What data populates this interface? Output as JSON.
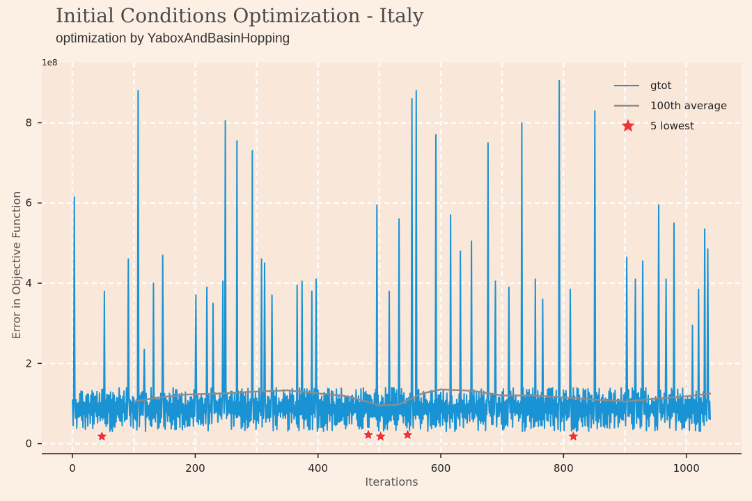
{
  "header": {
    "title": "Initial Conditions Optimization - Italy",
    "subtitle": "optimization by YaboxAndBasinHopping"
  },
  "chart_data": {
    "type": "line",
    "title": "Initial Conditions Optimization - Italy",
    "subtitle": "optimization by YaboxAndBasinHopping",
    "xlabel": "Iterations",
    "ylabel": "Error in Objective Function",
    "y_offset_label": "1e8",
    "xlim": [
      -50,
      1090
    ],
    "ylim": [
      -0.25,
      9.5
    ],
    "xticks": [
      0,
      200,
      400,
      600,
      800,
      1000
    ],
    "yticks": [
      0,
      2,
      4,
      6,
      8
    ],
    "grid": true,
    "legend_position": "top-right",
    "colors": {
      "gtot": "#1a93d4",
      "average": "#8c8c8c",
      "lowest": "#ee3333",
      "background": "#f9e7da",
      "page": "#fcf0e4"
    },
    "series": [
      {
        "name": "gtot",
        "kind": "line",
        "n_points": 1040,
        "baseline_range": [
          0.3,
          1.4
        ],
        "spikes": [
          {
            "x": 3,
            "y": 6.15
          },
          {
            "x": 52,
            "y": 3.8
          },
          {
            "x": 91,
            "y": 4.6
          },
          {
            "x": 107,
            "y": 8.8
          },
          {
            "x": 117,
            "y": 2.35
          },
          {
            "x": 132,
            "y": 4.0
          },
          {
            "x": 147,
            "y": 4.7
          },
          {
            "x": 201,
            "y": 3.7
          },
          {
            "x": 219,
            "y": 3.9
          },
          {
            "x": 229,
            "y": 3.5
          },
          {
            "x": 245,
            "y": 4.05
          },
          {
            "x": 249,
            "y": 8.05
          },
          {
            "x": 268,
            "y": 7.55
          },
          {
            "x": 293,
            "y": 7.3
          },
          {
            "x": 308,
            "y": 4.6
          },
          {
            "x": 313,
            "y": 4.5
          },
          {
            "x": 325,
            "y": 3.7
          },
          {
            "x": 366,
            "y": 3.95
          },
          {
            "x": 374,
            "y": 4.05
          },
          {
            "x": 390,
            "y": 3.8
          },
          {
            "x": 397,
            "y": 4.1
          },
          {
            "x": 496,
            "y": 5.95
          },
          {
            "x": 516,
            "y": 3.8
          },
          {
            "x": 532,
            "y": 5.6
          },
          {
            "x": 553,
            "y": 8.6
          },
          {
            "x": 560,
            "y": 8.8
          },
          {
            "x": 592,
            "y": 7.7
          },
          {
            "x": 616,
            "y": 5.7
          },
          {
            "x": 632,
            "y": 4.8
          },
          {
            "x": 650,
            "y": 5.05
          },
          {
            "x": 677,
            "y": 7.5
          },
          {
            "x": 689,
            "y": 4.05
          },
          {
            "x": 711,
            "y": 3.9
          },
          {
            "x": 732,
            "y": 8.0
          },
          {
            "x": 754,
            "y": 4.1
          },
          {
            "x": 766,
            "y": 3.6
          },
          {
            "x": 793,
            "y": 9.05
          },
          {
            "x": 811,
            "y": 3.85
          },
          {
            "x": 851,
            "y": 8.3
          },
          {
            "x": 903,
            "y": 4.65
          },
          {
            "x": 917,
            "y": 4.1
          },
          {
            "x": 929,
            "y": 4.55
          },
          {
            "x": 955,
            "y": 5.95
          },
          {
            "x": 967,
            "y": 4.1
          },
          {
            "x": 980,
            "y": 5.5
          },
          {
            "x": 1010,
            "y": 2.95
          },
          {
            "x": 1020,
            "y": 3.85
          },
          {
            "x": 1030,
            "y": 5.35
          },
          {
            "x": 1035,
            "y": 4.85
          }
        ]
      },
      {
        "name": "100th average",
        "kind": "line",
        "points": [
          {
            "x": 100,
            "y": 1.05
          },
          {
            "x": 140,
            "y": 1.15
          },
          {
            "x": 180,
            "y": 1.22
          },
          {
            "x": 240,
            "y": 1.25
          },
          {
            "x": 300,
            "y": 1.3
          },
          {
            "x": 350,
            "y": 1.33
          },
          {
            "x": 400,
            "y": 1.25
          },
          {
            "x": 440,
            "y": 1.2
          },
          {
            "x": 480,
            "y": 1.05
          },
          {
            "x": 500,
            "y": 0.95
          },
          {
            "x": 530,
            "y": 0.97
          },
          {
            "x": 570,
            "y": 1.25
          },
          {
            "x": 600,
            "y": 1.35
          },
          {
            "x": 650,
            "y": 1.32
          },
          {
            "x": 700,
            "y": 1.2
          },
          {
            "x": 750,
            "y": 1.2
          },
          {
            "x": 800,
            "y": 1.15
          },
          {
            "x": 850,
            "y": 1.1
          },
          {
            "x": 900,
            "y": 1.05
          },
          {
            "x": 950,
            "y": 1.12
          },
          {
            "x": 1000,
            "y": 1.18
          },
          {
            "x": 1040,
            "y": 1.25
          }
        ]
      },
      {
        "name": "5 lowest",
        "kind": "scatter",
        "points": [
          {
            "x": 48,
            "y": 0.18
          },
          {
            "x": 482,
            "y": 0.22
          },
          {
            "x": 502,
            "y": 0.18
          },
          {
            "x": 546,
            "y": 0.22
          },
          {
            "x": 816,
            "y": 0.18
          }
        ]
      }
    ]
  }
}
